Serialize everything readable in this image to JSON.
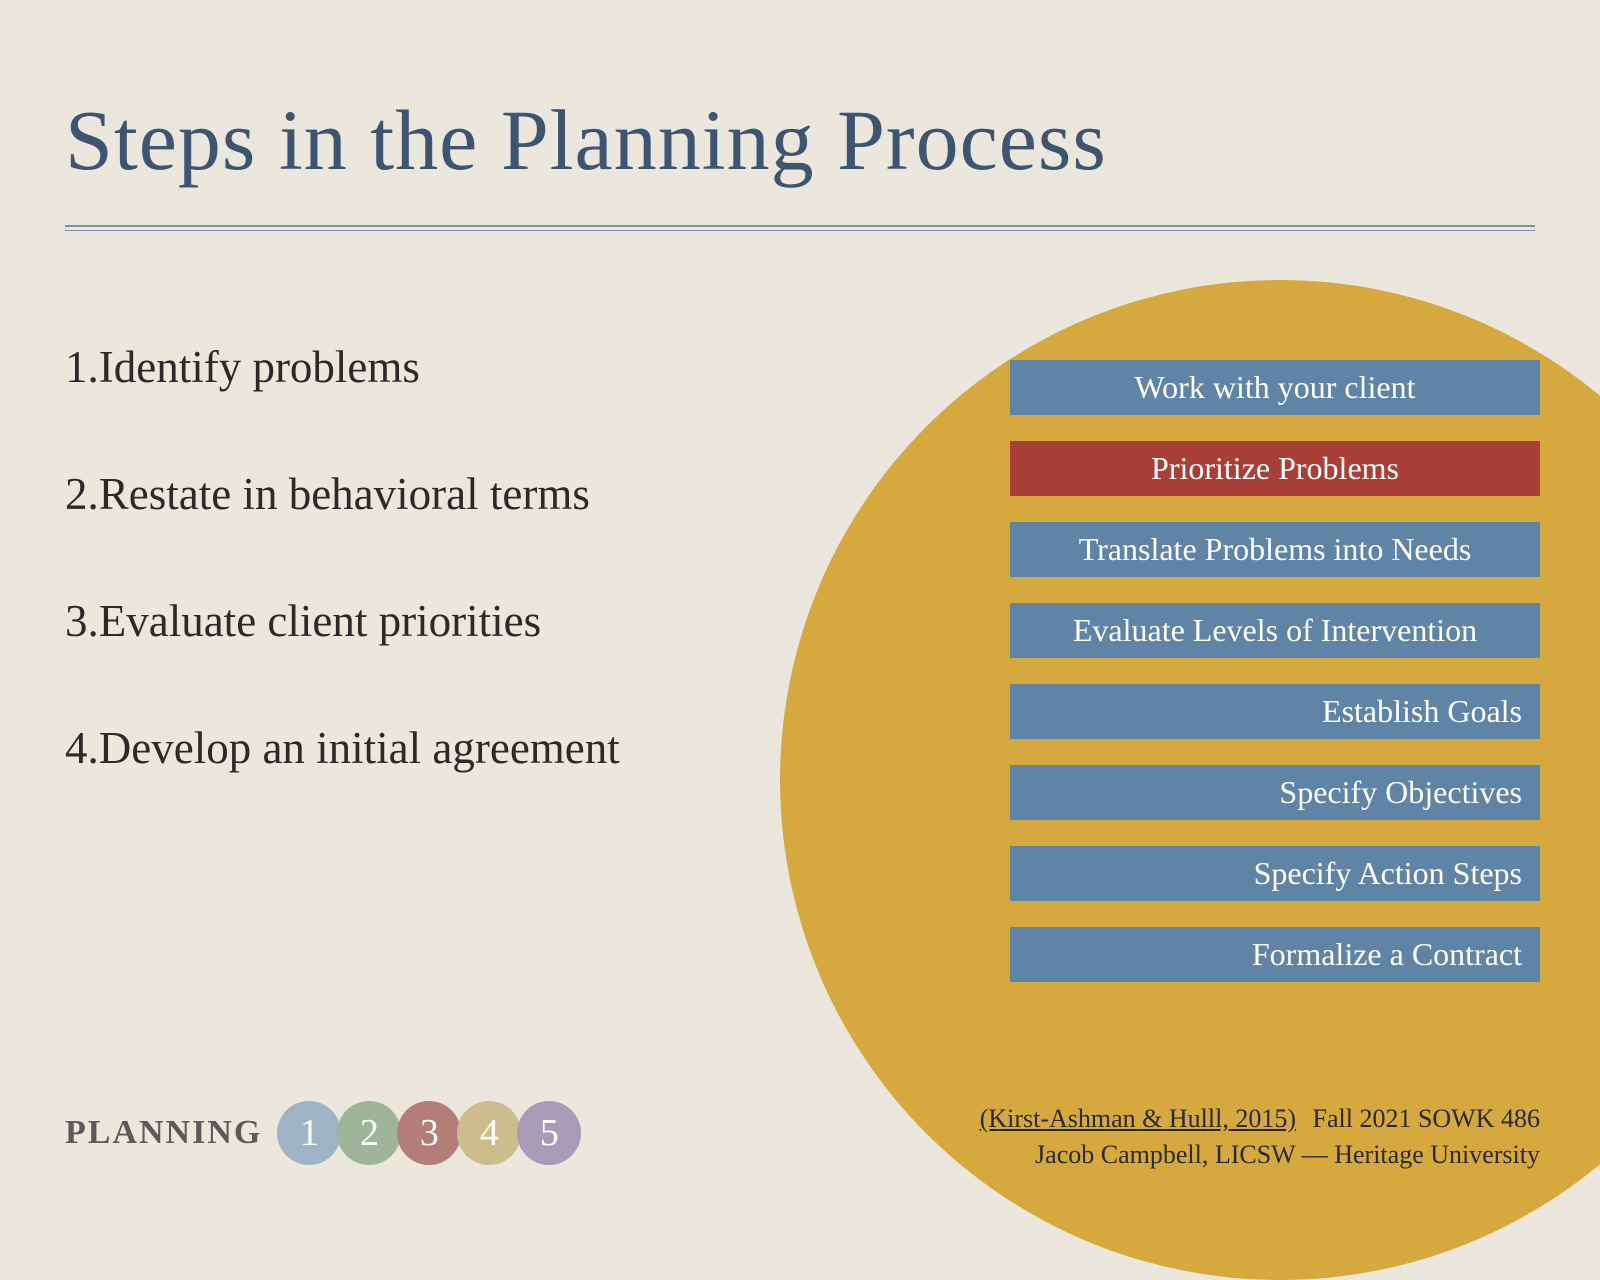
{
  "title": "Steps in the Planning Process",
  "list": [
    "1.Identify problems",
    "2.Restate in behavioral terms",
    "3.Evaluate client priorities",
    "4.Develop an initial agreement"
  ],
  "bars": [
    {
      "label": "Work with your client",
      "color": "#6084a5",
      "align": "a1"
    },
    {
      "label": "Prioritize Problems",
      "color": "#a94038",
      "align": "a2",
      "highlight": true
    },
    {
      "label": "Translate Problems into Needs",
      "color": "#6084a5",
      "align": "a3"
    },
    {
      "label": "Evaluate Levels of Intervention",
      "color": "#6084a5",
      "align": "a4"
    },
    {
      "label": "Establish Goals",
      "color": "#6084a5",
      "align": "a5"
    },
    {
      "label": "Specify Objectives",
      "color": "#6084a5",
      "align": "a6"
    },
    {
      "label": "Specify Action Steps",
      "color": "#6084a5",
      "align": "a7"
    },
    {
      "label": "Formalize a Contract",
      "color": "#6084a5",
      "align": "a8"
    }
  ],
  "circle_color": "#d6a93e",
  "footer": {
    "planning_label": "PLANNING",
    "dots": [
      {
        "n": "1",
        "color": "#9eb4c6"
      },
      {
        "n": "2",
        "color": "#9fb59a"
      },
      {
        "n": "3",
        "color": "#b57d79"
      },
      {
        "n": "4",
        "color": "#cdbd8c"
      },
      {
        "n": "5",
        "color": "#a79bb8"
      }
    ],
    "citation": "(Kirst-Ashman & Hulll, 2015)",
    "course": "Fall 2021 SOWK 486",
    "author": "Jacob Campbell, LICSW — Heritage University"
  },
  "colors": {
    "background": "#ece7dc",
    "title": "#3e5572",
    "text": "#2a2a2a",
    "divider": "#7a90a8"
  }
}
